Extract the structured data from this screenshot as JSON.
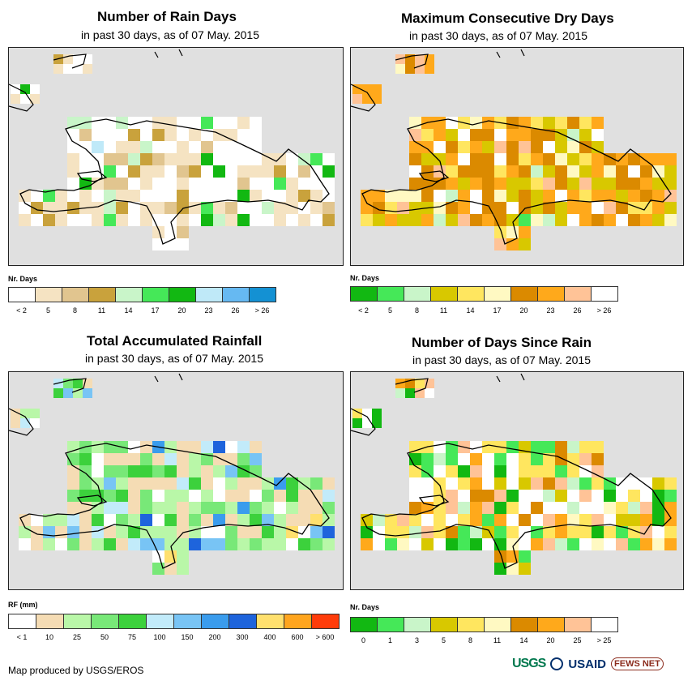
{
  "panels": [
    {
      "key": "rain_days",
      "title": "Number of Rain Days",
      "subtitle": "in past 30 days, as of 07 May. 2015",
      "legend": {
        "title": "Nr. Days",
        "colors": [
          "#ffffff",
          "#f5e3c2",
          "#e1c58f",
          "#c9a23c",
          "#c9f5c9",
          "#45e858",
          "#12b812",
          "#bfe9f8",
          "#66b9f2",
          "#1491d3"
        ],
        "labels": [
          "< 2",
          "5",
          "8",
          "11",
          "14",
          "17",
          "20",
          "23",
          "26",
          "> 26"
        ]
      }
    },
    {
      "key": "max_dry",
      "title": "Maximum Consecutive Dry Days",
      "subtitle": "in past 30 days, as of 07 May. 2015",
      "legend": {
        "title": "Nr. Days",
        "colors": [
          "#12b812",
          "#45e858",
          "#c9f5c9",
          "#d8c800",
          "#ffe65f",
          "#fff9c2",
          "#db8a00",
          "#ffa91b",
          "#ffc397",
          "#ffffff"
        ],
        "labels": [
          "< 2",
          "5",
          "8",
          "11",
          "14",
          "17",
          "20",
          "23",
          "26",
          "> 26"
        ]
      }
    },
    {
      "key": "total_rf",
      "title": "Total Accumulated Rainfall",
      "subtitle": "in past 30 days, as of 07 May. 2015",
      "legend": {
        "title": "RF (mm)",
        "colors": [
          "#ffffff",
          "#f5dcb4",
          "#b9f7a8",
          "#78e878",
          "#3cd13c",
          "#c2ebfa",
          "#78c4f5",
          "#3a9ced",
          "#1e64dc",
          "#ffe06e",
          "#ffa51e",
          "#ff3c0a"
        ],
        "labels": [
          "< 1",
          "10",
          "25",
          "50",
          "75",
          "100",
          "150",
          "200",
          "300",
          "400",
          "600",
          "> 600"
        ]
      }
    },
    {
      "key": "days_since",
      "title": "Number of Days Since Rain",
      "subtitle": "in past 30 days, as of 07 May. 2015",
      "legend": {
        "title": "Nr. Days",
        "colors": [
          "#12b812",
          "#45e858",
          "#c9f5c9",
          "#d8c800",
          "#ffe65f",
          "#fff9c2",
          "#db8a00",
          "#ffa91b",
          "#ffc397",
          "#ffffff"
        ],
        "labels": [
          "0",
          "1",
          "3",
          "5",
          "8",
          "11",
          "14",
          "20",
          "25",
          "> 25"
        ]
      }
    }
  ],
  "credit": "Map produced by USGS/EROS",
  "logos": {
    "usgs": "USGS",
    "usaid": "USAID",
    "fews": "FEWS NET"
  }
}
